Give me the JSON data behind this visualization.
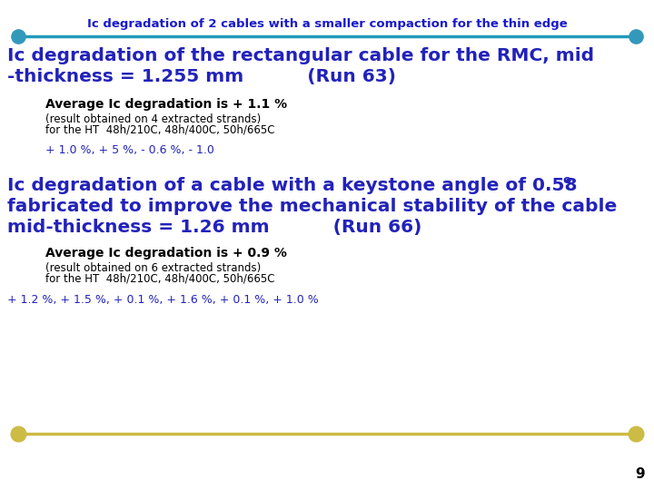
{
  "title": "Ic degradation of 2 cables with a smaller compaction for the thin edge",
  "title_color": "#1a1acc",
  "title_fontsize": 9.5,
  "bg_color": "#ffffff",
  "top_line_color": "#2299bb",
  "top_dot_color": "#3399bb",
  "bottom_line_color": "#ccbb44",
  "bottom_dot_color": "#ccbb44",
  "section1_heading_line1": "Ic degradation of the rectangular cable for the RMC, mid",
  "section1_heading_line2": "-thickness = 1.255 mm          (Run 63)",
  "section1_heading_color": "#2222bb",
  "section1_heading_fontsize": 14.5,
  "section1_avg_bold": "Average Ic degradation is + 1.1 %",
  "section1_avg_fontsize": 10,
  "section1_sub1": "(result obtained on 4 extracted strands)",
  "section1_sub2": "for the HT  48h/210C, 48h/400C, 50h/665C",
  "section1_sub_fontsize": 8.5,
  "section1_values": "+ 1.0 %, + 5 %, - 0.6 %, - 1.0",
  "section1_values_fontsize": 9,
  "section1_values_color": "#2222bb",
  "section2_heading_line1": "Ic degradation of a cable with a keystone angle of 0.58",
  "section2_heading_sup": "o",
  "section2_heading_line2": "fabricated to improve the mechanical stability of the cable",
  "section2_heading_line3": "mid-thickness = 1.26 mm          (Run 66)",
  "section2_heading_color": "#2222bb",
  "section2_heading_fontsize": 14.5,
  "section2_avg_bold": "Average Ic degradation is + 0.9 %",
  "section2_avg_fontsize": 10,
  "section2_sub1": "(result obtained on 6 extracted strands)",
  "section2_sub2": "for the HT  48h/210C, 48h/400C, 50h/665C",
  "section2_sub_fontsize": 8.5,
  "section2_values": "+ 1.2 %, + 1.5 %, + 0.1 %, + 1.6 %, + 0.1 %, + 1.0 %",
  "section2_values_fontsize": 9,
  "section2_values_color": "#2222bb",
  "page_number": "9",
  "page_number_color": "#000000",
  "page_number_fontsize": 11
}
